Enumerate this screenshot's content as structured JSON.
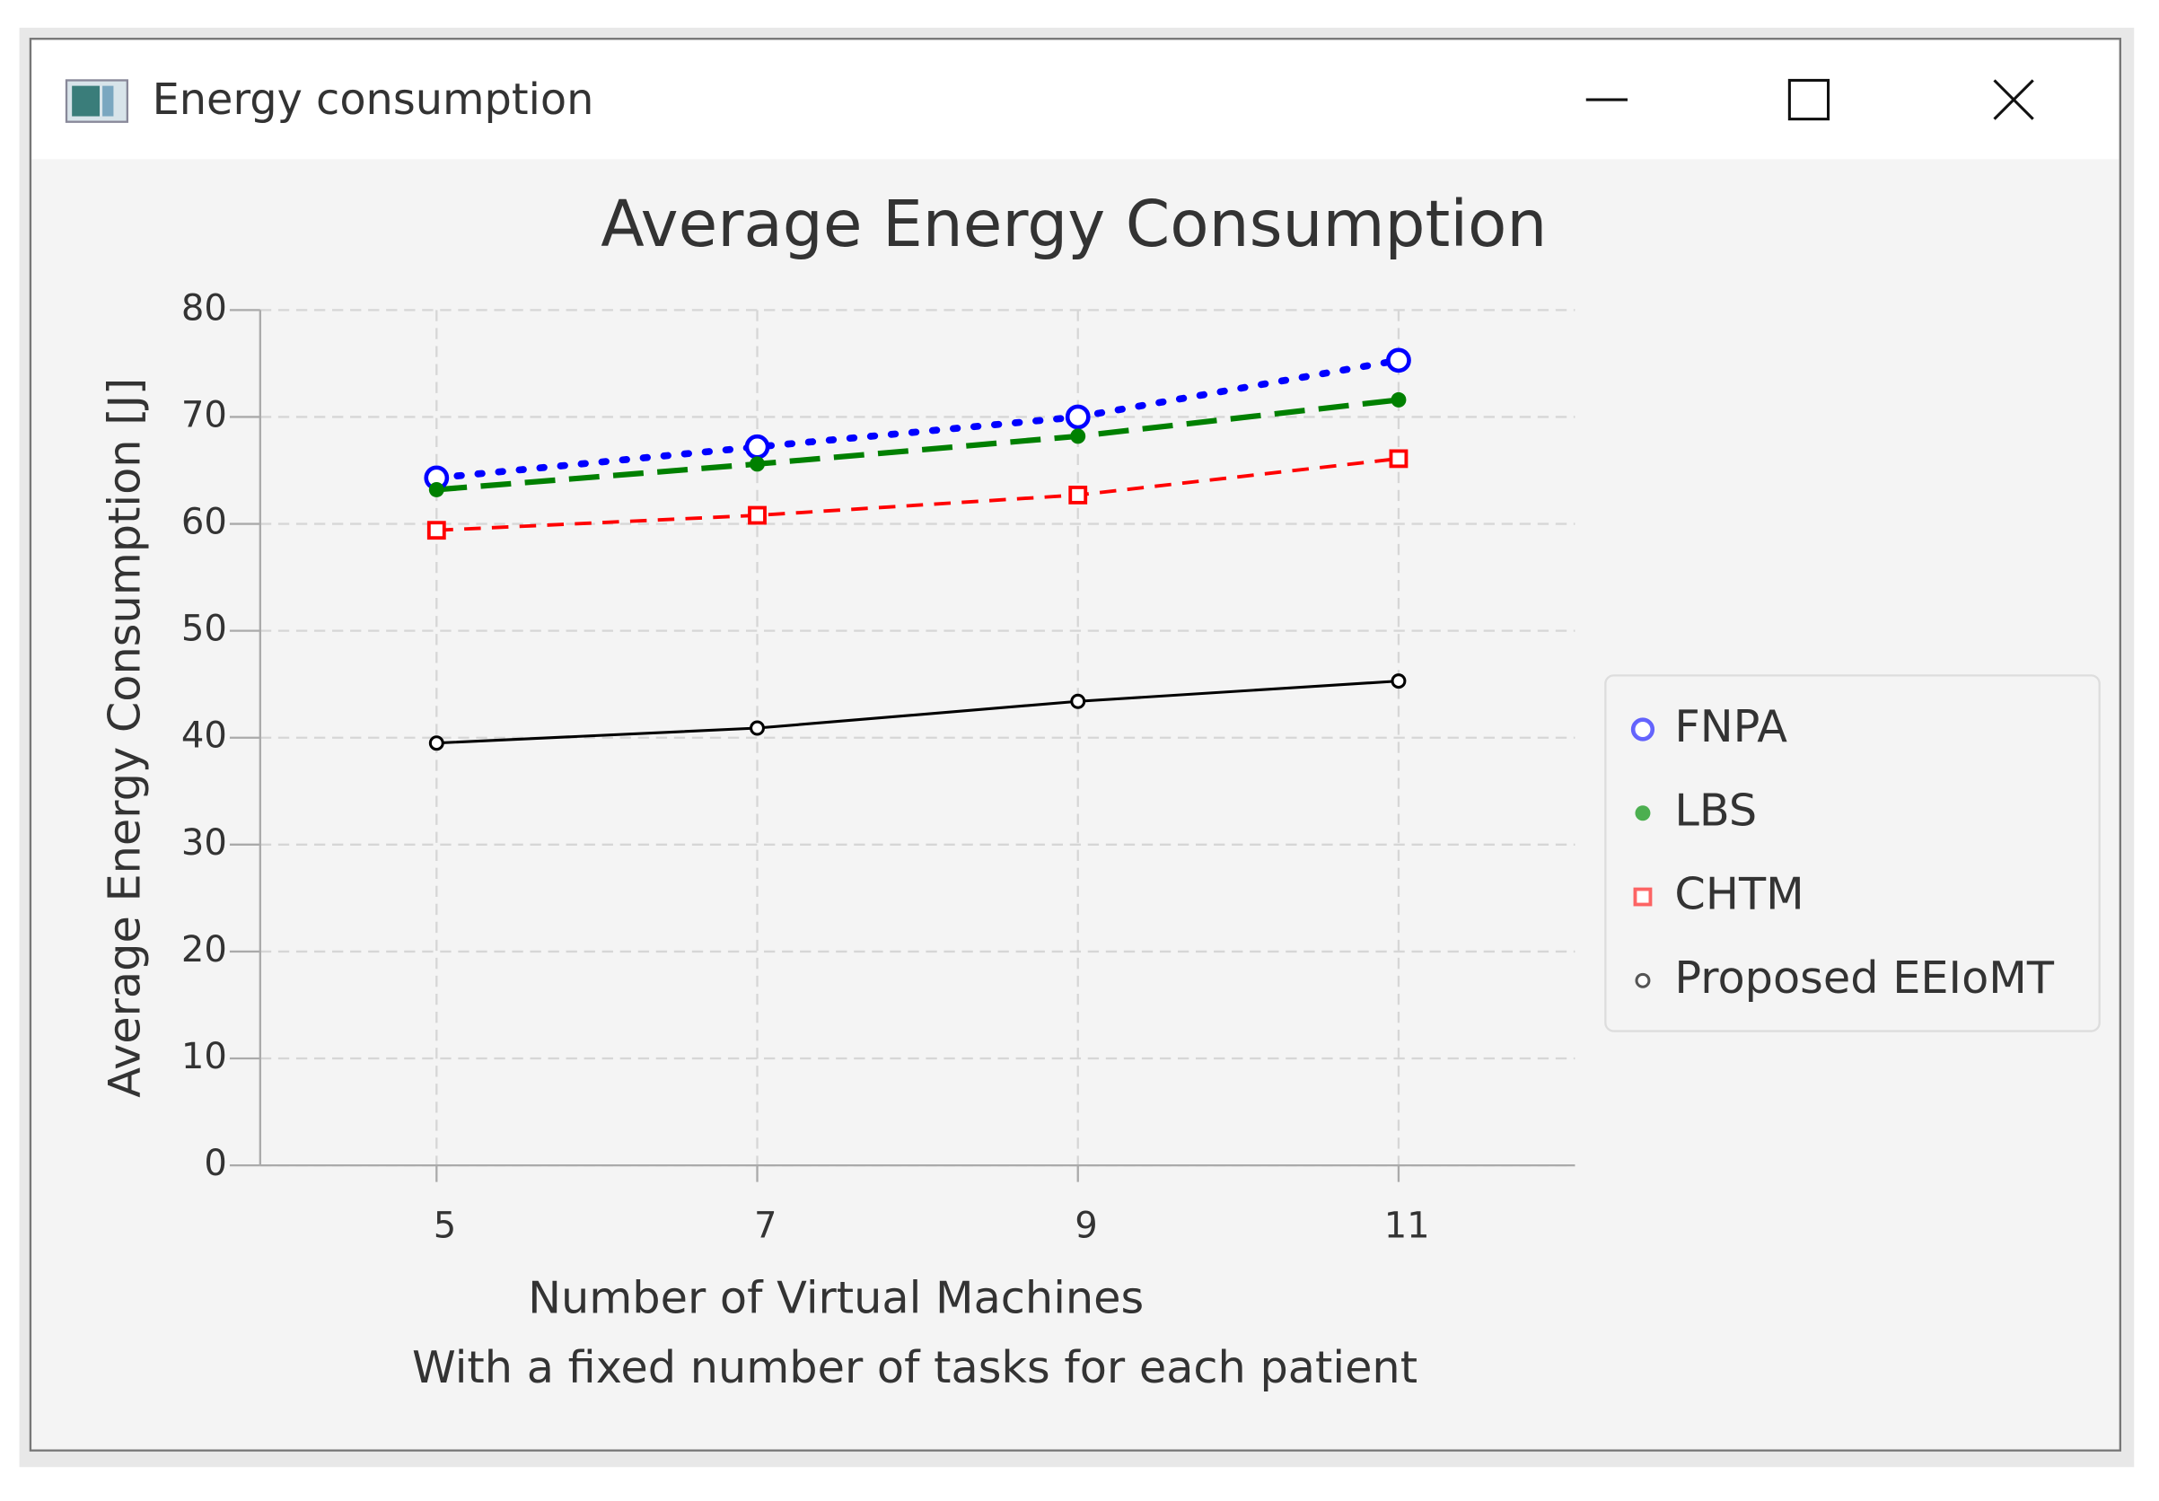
{
  "window": {
    "title": "Energy consumption"
  },
  "chart_data": {
    "type": "line",
    "title": "Average Energy Consumption",
    "xlabel": "Number of Virtual Machines",
    "xlabel_note": "With a fixed number of tasks for each patient",
    "ylabel": "Average Energy Consumption [J]",
    "x": [
      5,
      7,
      9,
      11
    ],
    "xlim": [
      3.9,
      12.1
    ],
    "xticks": [
      5,
      7,
      9,
      11
    ],
    "ylim": [
      0,
      80
    ],
    "yticks": [
      0,
      10,
      20,
      30,
      40,
      50,
      60,
      70,
      80
    ],
    "grid": true,
    "legend": "right",
    "series": [
      {
        "name": "FNPA",
        "color": "#0000ff",
        "dash": "dotted",
        "marker": "open-circle",
        "values": [
          64.3,
          67.2,
          70.0,
          75.3
        ]
      },
      {
        "name": "LBS",
        "color": "#008000",
        "dash": "long-dash",
        "marker": "dot",
        "values": [
          63.2,
          65.6,
          68.2,
          71.6
        ]
      },
      {
        "name": "CHTM",
        "color": "#ff0000",
        "dash": "dash",
        "marker": "open-square",
        "values": [
          59.4,
          60.8,
          62.7,
          66.1
        ]
      },
      {
        "name": "Proposed EEIoMT",
        "color": "#000000",
        "dash": "solid",
        "marker": "small-open-circle",
        "values": [
          39.5,
          40.9,
          43.4,
          45.3
        ]
      }
    ]
  }
}
